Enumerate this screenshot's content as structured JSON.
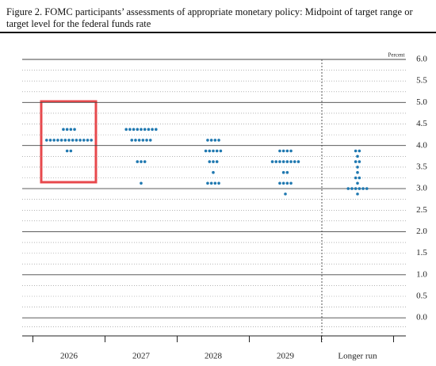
{
  "chart_data": {
    "type": "dot",
    "title": "Figure 2. FOMC participants’ assessments of appropriate monetary policy: Midpoint of target range or target level for the federal funds rate",
    "y_label": "Percent",
    "categories": [
      "2026",
      "2027",
      "2028",
      "2029",
      "Longer run"
    ],
    "values": [
      [
        4.375,
        4.375,
        4.375,
        4.375,
        4.125,
        4.125,
        4.125,
        4.125,
        4.125,
        4.125,
        4.125,
        4.125,
        4.125,
        4.125,
        4.125,
        4.125,
        4.125,
        3.875,
        3.875
      ],
      [
        4.375,
        4.375,
        4.375,
        4.375,
        4.375,
        4.375,
        4.375,
        4.375,
        4.375,
        4.125,
        4.125,
        4.125,
        4.125,
        4.125,
        4.125,
        3.625,
        3.625,
        3.625,
        3.125
      ],
      [
        4.125,
        4.125,
        4.125,
        4.125,
        3.875,
        3.875,
        3.875,
        3.875,
        3.875,
        3.625,
        3.625,
        3.625,
        3.375,
        3.125,
        3.125,
        3.125,
        3.125
      ],
      [
        3.875,
        3.875,
        3.875,
        3.875,
        3.625,
        3.625,
        3.625,
        3.625,
        3.625,
        3.625,
        3.625,
        3.625,
        3.375,
        3.375,
        3.125,
        3.125,
        3.125,
        3.125,
        2.875
      ],
      [
        3.875,
        3.875,
        3.75,
        3.625,
        3.625,
        3.5,
        3.375,
        3.25,
        3.25,
        3.125,
        3.0,
        3.0,
        3.0,
        3.0,
        3.0,
        3.0,
        2.875
      ]
    ],
    "color": "#1f78b0",
    "ylim": [
      -0.42,
      6.0
    ],
    "yticks": [
      {
        "value": 0,
        "label": "0.0"
      },
      0.5,
      {
        "value": 1,
        "label": "1.0"
      },
      1.5,
      {
        "value": 2,
        "label": "2.0"
      },
      2.5,
      {
        "value": 3,
        "label": "3.0"
      },
      3.5,
      {
        "value": 4,
        "label": "4.0"
      },
      4.5,
      {
        "value": 5,
        "label": "5.0"
      },
      5.5,
      {
        "value": 6,
        "label": "6.0"
      }
    ],
    "grid": true
  }
}
